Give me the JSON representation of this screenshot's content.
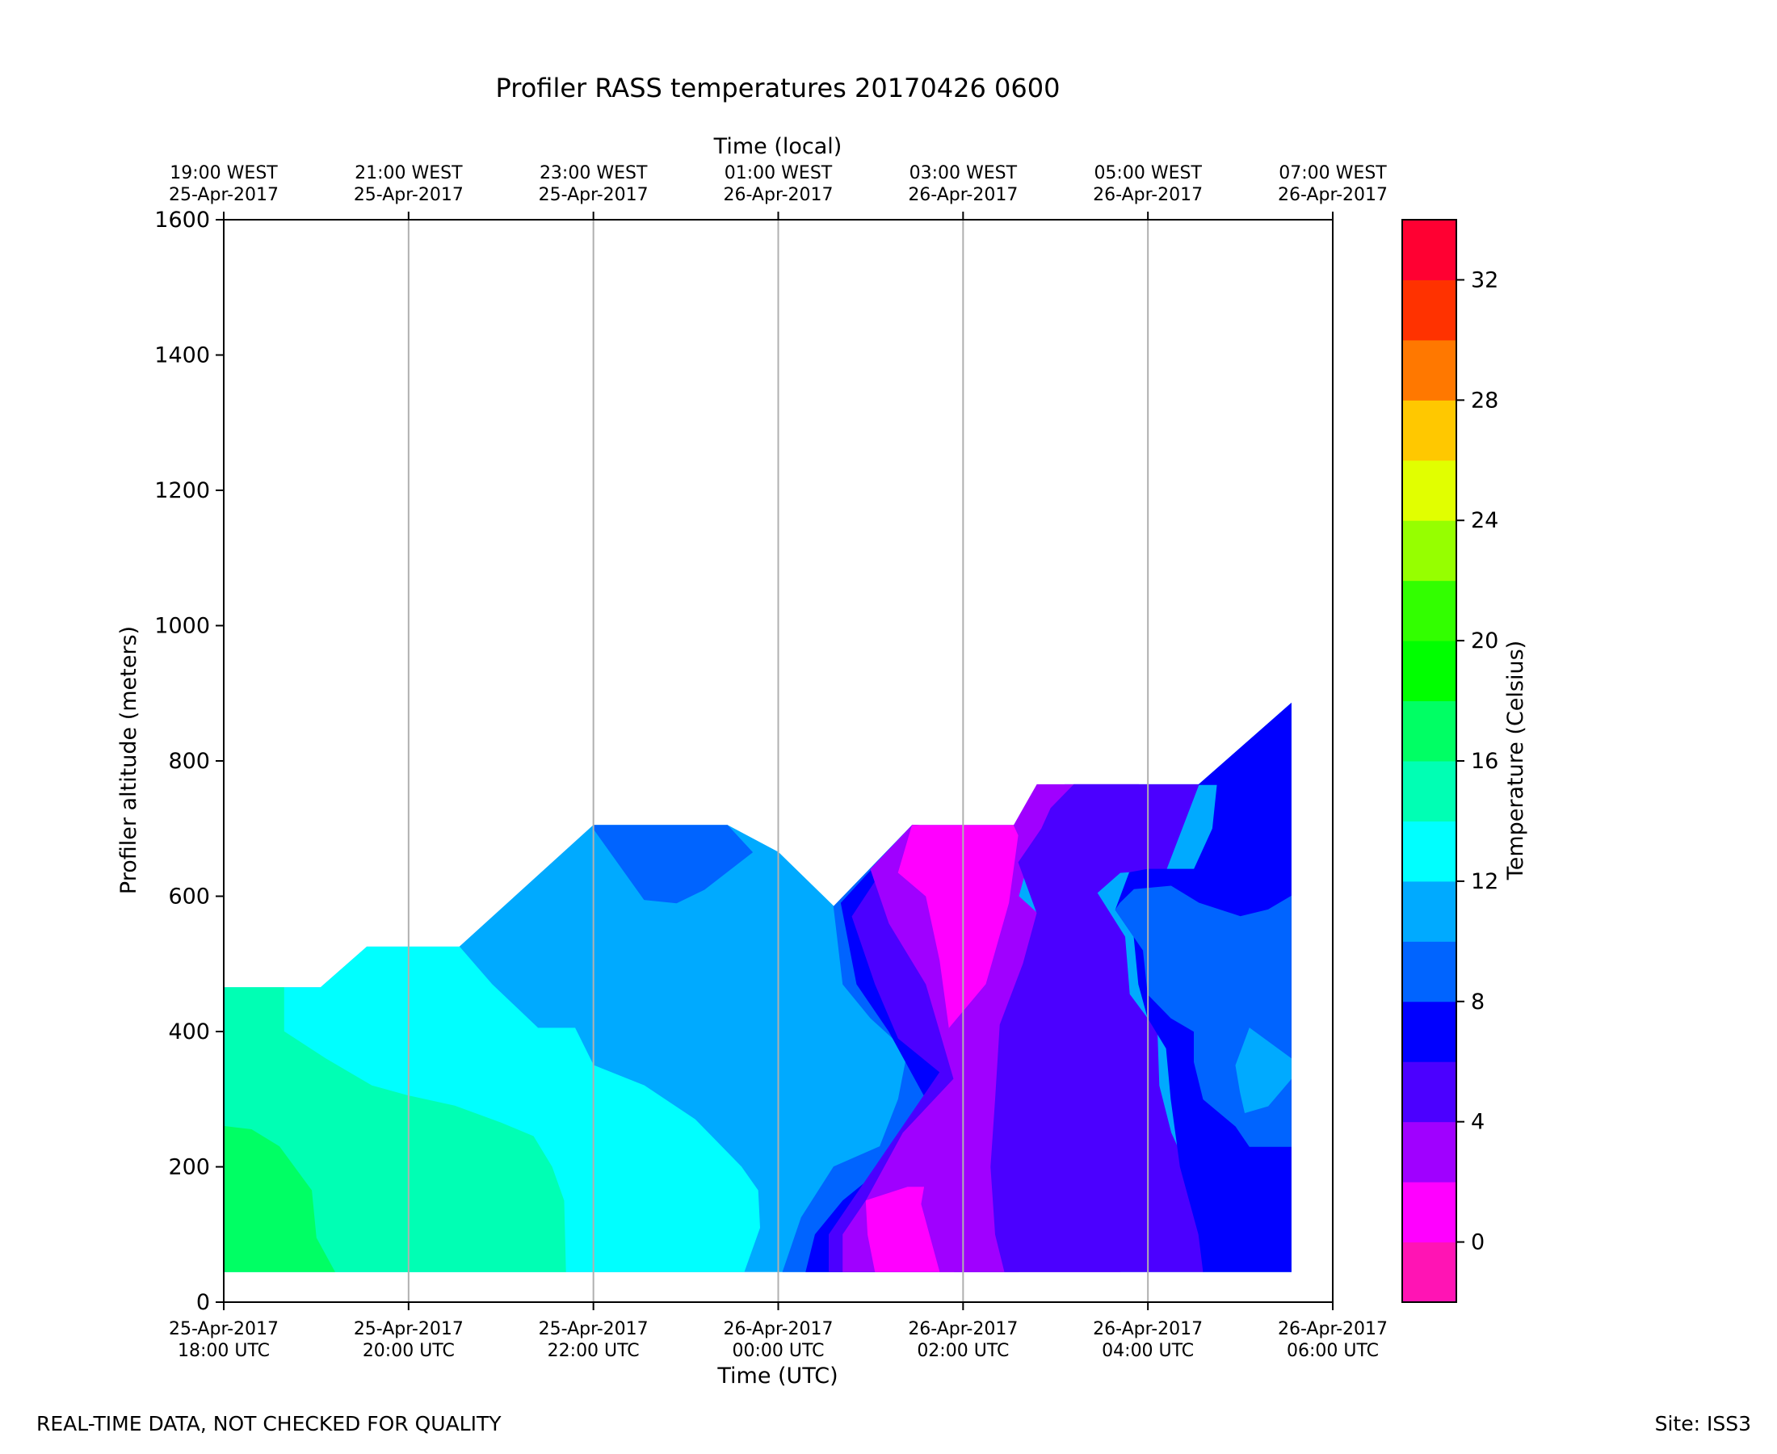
{
  "chart_data": {
    "type": "heatmap",
    "title": "Profiler RASS temperatures 20170426 0600",
    "xlabel": "Time (UTC)",
    "x2label": "Time (local)",
    "ylabel": "Profiler altitude (meters)",
    "colorbar_label": "Temperature (Celsius)",
    "xlim_hours_utc": [
      18,
      30
    ],
    "ylim": [
      0,
      1600
    ],
    "grid": "vertical lines at x ticks",
    "x_ticks": [
      {
        "hour": 18,
        "utc": [
          "25-Apr-2017",
          "18:00 UTC"
        ],
        "local": [
          "19:00 WEST",
          "25-Apr-2017"
        ]
      },
      {
        "hour": 20,
        "utc": [
          "25-Apr-2017",
          "20:00 UTC"
        ],
        "local": [
          "21:00 WEST",
          "25-Apr-2017"
        ]
      },
      {
        "hour": 22,
        "utc": [
          "25-Apr-2017",
          "22:00 UTC"
        ],
        "local": [
          "23:00 WEST",
          "25-Apr-2017"
        ]
      },
      {
        "hour": 24,
        "utc": [
          "26-Apr-2017",
          "00:00 UTC"
        ],
        "local": [
          "01:00 WEST",
          "26-Apr-2017"
        ]
      },
      {
        "hour": 26,
        "utc": [
          "26-Apr-2017",
          "02:00 UTC"
        ],
        "local": [
          "03:00 WEST",
          "26-Apr-2017"
        ]
      },
      {
        "hour": 28,
        "utc": [
          "26-Apr-2017",
          "04:00 UTC"
        ],
        "local": [
          "05:00 WEST",
          "26-Apr-2017"
        ]
      },
      {
        "hour": 30,
        "utc": [
          "26-Apr-2017",
          "06:00 UTC"
        ],
        "local": [
          "07:00 WEST",
          "26-Apr-2017"
        ]
      }
    ],
    "y_ticks": [
      0,
      200,
      400,
      600,
      800,
      1000,
      1200,
      1400,
      1600
    ],
    "colorbar": {
      "levels": [
        -2,
        0,
        2,
        4,
        6,
        8,
        10,
        12,
        14,
        16,
        18,
        20,
        22,
        24,
        26,
        28,
        30,
        32,
        34
      ],
      "colors": [
        "#ff14b4",
        "#ff00ff",
        "#a000ff",
        "#4b00ff",
        "#0000ff",
        "#0064ff",
        "#00aaff",
        "#00ffff",
        "#00ffb4",
        "#00ff64",
        "#00ff00",
        "#32ff00",
        "#96ff00",
        "#e1ff00",
        "#ffc800",
        "#ff7800",
        "#ff3200",
        "#ff0032"
      ],
      "ticks": [
        0,
        4,
        8,
        12,
        16,
        20,
        24,
        28,
        32
      ]
    },
    "regions": [
      {
        "label": "10-12 C",
        "color": "#00aaff",
        "points": [
          [
            18.0,
            45
          ],
          [
            29.55,
            45
          ],
          [
            29.55,
            885
          ],
          [
            28.55,
            765
          ],
          [
            27.1,
            765
          ],
          [
            26.55,
            705
          ],
          [
            25.45,
            705
          ],
          [
            24.6,
            585
          ],
          [
            24.0,
            665
          ],
          [
            23.45,
            705
          ],
          [
            22.0,
            705
          ],
          [
            20.55,
            525
          ],
          [
            19.55,
            525
          ],
          [
            19.05,
            465
          ],
          [
            18.0,
            465
          ]
        ]
      },
      {
        "label": "12-14 C",
        "color": "#00ffff",
        "points": [
          [
            18.0,
            45
          ],
          [
            23.63,
            45
          ],
          [
            23.8,
            110
          ],
          [
            23.78,
            165
          ],
          [
            23.6,
            200
          ],
          [
            23.1,
            270
          ],
          [
            22.55,
            320
          ],
          [
            22.0,
            350
          ],
          [
            21.8,
            405
          ],
          [
            21.4,
            405
          ],
          [
            20.9,
            470
          ],
          [
            20.55,
            525
          ],
          [
            19.55,
            525
          ],
          [
            19.05,
            465
          ],
          [
            18.0,
            465
          ]
        ]
      },
      {
        "label": "14-16 C",
        "color": "#00ffb4",
        "points": [
          [
            18.0,
            45
          ],
          [
            21.7,
            45
          ],
          [
            21.68,
            150
          ],
          [
            21.55,
            200
          ],
          [
            21.35,
            245
          ],
          [
            21.0,
            265
          ],
          [
            20.5,
            290
          ],
          [
            20.0,
            305
          ],
          [
            19.6,
            320
          ],
          [
            19.1,
            360
          ],
          [
            18.65,
            400
          ],
          [
            18.65,
            465
          ],
          [
            18.0,
            465
          ]
        ]
      },
      {
        "label": "16-18 C",
        "color": "#00ff64",
        "points": [
          [
            18.0,
            45
          ],
          [
            19.2,
            45
          ],
          [
            19.0,
            95
          ],
          [
            18.95,
            165
          ],
          [
            18.6,
            230
          ],
          [
            18.3,
            255
          ],
          [
            18.0,
            260
          ]
        ]
      },
      {
        "label": "8-10 C",
        "color": "#0064ff",
        "points": [
          [
            22.0,
            705
          ],
          [
            23.45,
            705
          ],
          [
            23.72,
            665
          ],
          [
            23.2,
            610
          ],
          [
            22.9,
            590
          ],
          [
            22.55,
            595
          ],
          [
            22.0,
            700
          ]
        ]
      },
      {
        "label": "8-10 C",
        "color": "#0064ff",
        "points": [
          [
            24.05,
            45
          ],
          [
            26.6,
            45
          ],
          [
            26.6,
            700
          ],
          [
            25.45,
            705
          ],
          [
            24.6,
            585
          ],
          [
            24.7,
            470
          ],
          [
            25.0,
            420
          ],
          [
            25.4,
            370
          ],
          [
            25.3,
            300
          ],
          [
            25.1,
            230
          ],
          [
            24.6,
            200
          ],
          [
            24.25,
            125
          ]
        ]
      },
      {
        "label": "6-8 C",
        "color": "#0000ff",
        "points": [
          [
            24.3,
            45
          ],
          [
            26.6,
            45
          ],
          [
            26.6,
            700
          ],
          [
            25.45,
            705
          ],
          [
            24.68,
            590
          ],
          [
            24.85,
            470
          ],
          [
            25.2,
            400
          ],
          [
            25.6,
            300
          ],
          [
            25.15,
            200
          ],
          [
            24.7,
            150
          ],
          [
            24.4,
            100
          ]
        ]
      },
      {
        "label": "4-6 C",
        "color": "#4b00ff",
        "points": [
          [
            24.55,
            45
          ],
          [
            26.6,
            45
          ],
          [
            26.6,
            700
          ],
          [
            25.45,
            705
          ],
          [
            24.8,
            570
          ],
          [
            25.05,
            470
          ],
          [
            25.3,
            390
          ],
          [
            25.75,
            340
          ],
          [
            25.3,
            250
          ],
          [
            24.8,
            150
          ],
          [
            24.55,
            100
          ]
        ]
      },
      {
        "label": "2-4 C",
        "color": "#a000ff",
        "points": [
          [
            24.7,
            45
          ],
          [
            26.6,
            45
          ],
          [
            26.6,
            700
          ],
          [
            25.45,
            705
          ],
          [
            25.0,
            640
          ],
          [
            25.2,
            560
          ],
          [
            25.6,
            470
          ],
          [
            25.9,
            330
          ],
          [
            25.35,
            250
          ],
          [
            24.95,
            150
          ],
          [
            24.7,
            100
          ]
        ]
      },
      {
        "label": "0-2 C",
        "color": "#ff00ff",
        "points": [
          [
            24.95,
            150
          ],
          [
            25.4,
            170
          ],
          [
            25.85,
            170
          ],
          [
            26.0,
            100
          ],
          [
            25.9,
            45
          ],
          [
            25.05,
            45
          ],
          [
            24.97,
            100
          ]
        ]
      },
      {
        "label": "0-2 C",
        "color": "#ff00ff",
        "points": [
          [
            25.3,
            635
          ],
          [
            25.45,
            705
          ],
          [
            26.55,
            705
          ],
          [
            26.6,
            690
          ],
          [
            26.5,
            590
          ],
          [
            26.25,
            470
          ],
          [
            25.85,
            405
          ],
          [
            25.75,
            505
          ],
          [
            25.6,
            600
          ]
        ]
      },
      {
        "label": "2-4 C",
        "color": "#a000ff",
        "points": [
          [
            25.55,
            145
          ],
          [
            25.75,
            305
          ],
          [
            26.0,
            340
          ],
          [
            25.85,
            405
          ],
          [
            26.25,
            470
          ],
          [
            26.5,
            590
          ],
          [
            26.6,
            690
          ],
          [
            26.55,
            705
          ],
          [
            26.8,
            765
          ],
          [
            27.9,
            765
          ],
          [
            27.95,
            730
          ],
          [
            27.55,
            715
          ],
          [
            26.85,
            690
          ],
          [
            26.7,
            650
          ],
          [
            26.6,
            600
          ],
          [
            26.8,
            575
          ],
          [
            26.65,
            500
          ],
          [
            26.4,
            410
          ],
          [
            26.5,
            360
          ],
          [
            26.9,
            360
          ],
          [
            27.4,
            300
          ],
          [
            27.6,
            200
          ],
          [
            27.6,
            100
          ],
          [
            27.7,
            45
          ],
          [
            25.75,
            45
          ]
        ]
      },
      {
        "label": "4-6 C",
        "color": "#4b00ff",
        "points": [
          [
            26.5,
            45
          ],
          [
            28.6,
            45
          ],
          [
            28.6,
            100
          ],
          [
            28.55,
            160
          ],
          [
            28.25,
            250
          ],
          [
            28.12,
            320
          ],
          [
            28.1,
            400
          ],
          [
            27.8,
            455
          ],
          [
            27.75,
            540
          ],
          [
            27.45,
            605
          ],
          [
            27.7,
            635
          ],
          [
            28.2,
            640
          ],
          [
            28.55,
            765
          ],
          [
            27.2,
            765
          ],
          [
            26.95,
            730
          ],
          [
            26.85,
            700
          ],
          [
            26.6,
            650
          ],
          [
            26.8,
            575
          ],
          [
            26.65,
            500
          ],
          [
            26.4,
            410
          ],
          [
            26.35,
            300
          ],
          [
            26.3,
            200
          ],
          [
            26.35,
            100
          ],
          [
            26.45,
            45
          ]
        ]
      },
      {
        "label": "6-8 C",
        "color": "#0000ff",
        "points": [
          [
            28.6,
            45
          ],
          [
            29.55,
            45
          ],
          [
            29.55,
            885
          ],
          [
            28.55,
            765
          ],
          [
            28.75,
            765
          ],
          [
            28.7,
            700
          ],
          [
            28.5,
            640
          ],
          [
            28.0,
            640
          ],
          [
            27.8,
            635
          ],
          [
            27.65,
            580
          ],
          [
            27.85,
            540
          ],
          [
            27.9,
            470
          ],
          [
            28.0,
            420
          ],
          [
            28.2,
            375
          ],
          [
            28.25,
            300
          ],
          [
            28.35,
            200
          ],
          [
            28.55,
            100
          ]
        ]
      },
      {
        "label": "8-10 C",
        "color": "#0064ff",
        "points": [
          [
            27.7,
            590
          ],
          [
            27.85,
            610
          ],
          [
            28.25,
            615
          ],
          [
            28.55,
            590
          ],
          [
            29.0,
            570
          ],
          [
            29.3,
            580
          ],
          [
            29.55,
            600
          ],
          [
            29.55,
            230
          ],
          [
            29.1,
            230
          ],
          [
            28.95,
            260
          ],
          [
            28.6,
            300
          ],
          [
            28.5,
            355
          ],
          [
            28.5,
            400
          ],
          [
            28.25,
            420
          ],
          [
            28.0,
            455
          ],
          [
            27.95,
            520
          ],
          [
            27.65,
            580
          ]
        ]
      },
      {
        "label": "10-12 C",
        "color": "#00aaff",
        "points": [
          [
            28.95,
            350
          ],
          [
            29.1,
            405
          ],
          [
            29.55,
            360
          ],
          [
            29.55,
            330
          ],
          [
            29.3,
            290
          ],
          [
            29.05,
            280
          ],
          [
            29.0,
            310
          ]
        ]
      }
    ]
  },
  "footer": {
    "left": "REAL-TIME DATA, NOT CHECKED FOR QUALITY",
    "right": "Site: ISS3"
  }
}
